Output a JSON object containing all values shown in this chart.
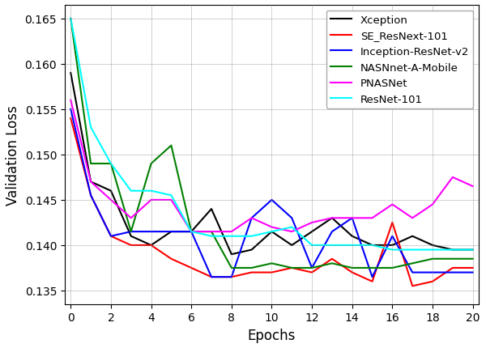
{
  "epochs": [
    0,
    1,
    2,
    3,
    4,
    5,
    6,
    7,
    8,
    9,
    10,
    11,
    12,
    13,
    14,
    15,
    16,
    17,
    18,
    19,
    20
  ],
  "series": [
    {
      "label": "Xception",
      "color": "black",
      "values": [
        0.159,
        0.147,
        0.146,
        0.141,
        0.14,
        0.1415,
        0.1415,
        0.144,
        0.139,
        0.1395,
        0.1415,
        0.14,
        0.1415,
        0.143,
        0.141,
        0.14,
        0.14,
        0.141,
        0.14,
        0.1395,
        0.1395
      ]
    },
    {
      "label": "SE_ResNext-101",
      "color": "red",
      "values": [
        0.154,
        0.1455,
        0.141,
        0.14,
        0.14,
        0.1385,
        0.1375,
        0.1365,
        0.1365,
        0.137,
        0.137,
        0.1375,
        0.137,
        0.1385,
        0.137,
        0.136,
        0.1425,
        0.1355,
        0.136,
        0.1375,
        0.1375
      ]
    },
    {
      "label": "Inception-ResNet-v2",
      "color": "blue",
      "values": [
        0.155,
        0.1455,
        0.141,
        0.1415,
        0.1415,
        0.1415,
        0.1415,
        0.1365,
        0.1365,
        0.143,
        0.145,
        0.143,
        0.1375,
        0.1415,
        0.143,
        0.1365,
        0.141,
        0.137,
        0.137,
        0.137,
        0.137
      ]
    },
    {
      "label": "NASNnet-A-Mobile",
      "color": "green",
      "values": [
        0.165,
        0.149,
        0.149,
        0.1415,
        0.149,
        0.151,
        0.1415,
        0.1415,
        0.1375,
        0.1375,
        0.138,
        0.1375,
        0.1375,
        0.138,
        0.1375,
        0.1375,
        0.1375,
        0.138,
        0.1385,
        0.1385,
        0.1385
      ]
    },
    {
      "label": "PNASNet",
      "color": "magenta",
      "values": [
        0.156,
        0.147,
        0.145,
        0.143,
        0.145,
        0.145,
        0.1415,
        0.1415,
        0.1415,
        0.143,
        0.142,
        0.1415,
        0.1425,
        0.143,
        0.143,
        0.143,
        0.1445,
        0.143,
        0.1445,
        0.1475,
        0.1465
      ]
    },
    {
      "label": "ResNet-101",
      "color": "cyan",
      "values": [
        0.165,
        0.153,
        0.149,
        0.146,
        0.146,
        0.1455,
        0.1415,
        0.141,
        0.141,
        0.141,
        0.1415,
        0.142,
        0.14,
        0.14,
        0.14,
        0.14,
        0.1395,
        0.1395,
        0.1395,
        0.1395,
        0.1395
      ]
    }
  ],
  "xlabel": "Epochs",
  "ylabel": "Validation Loss",
  "ylim": [
    0.1335,
    0.1665
  ],
  "xlim": [
    -0.3,
    20.3
  ],
  "yticks": [
    0.135,
    0.14,
    0.145,
    0.15,
    0.155,
    0.16,
    0.165
  ],
  "xticks": [
    0,
    2,
    4,
    6,
    8,
    10,
    12,
    14,
    16,
    18,
    20
  ],
  "grid": true,
  "linewidth": 1.5,
  "legend_fontsize": 9.5,
  "axis_fontsize": 12,
  "tick_fontsize": 10,
  "figure_width": 6.0,
  "figure_height": 4.31,
  "figure_dpi": 100
}
